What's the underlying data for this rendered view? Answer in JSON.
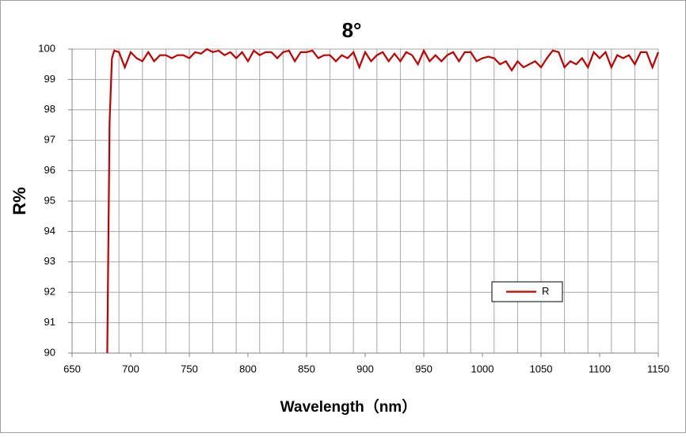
{
  "chart_data": {
    "type": "line",
    "title": "8°",
    "x_label": "Wavelength（nm）",
    "y_label": "R%",
    "xlim": [
      650,
      1150
    ],
    "ylim": [
      90,
      100
    ],
    "xticks": [
      650,
      700,
      750,
      800,
      850,
      900,
      950,
      1000,
      1050,
      1100,
      1150
    ],
    "yticks": [
      90,
      91,
      92,
      93,
      94,
      95,
      96,
      97,
      98,
      99,
      100
    ],
    "xgrid": [
      650,
      670,
      690,
      710,
      730,
      750,
      770,
      790,
      810,
      830,
      850,
      870,
      890,
      910,
      930,
      950,
      970,
      990,
      1010,
      1030,
      1050,
      1070,
      1090,
      1110,
      1130,
      1150
    ],
    "grid": true,
    "legend": "lower right",
    "x": [
      680,
      682,
      684,
      686,
      690,
      695,
      700,
      705,
      710,
      715,
      720,
      725,
      730,
      735,
      740,
      745,
      750,
      755,
      760,
      765,
      770,
      775,
      780,
      785,
      790,
      795,
      800,
      805,
      810,
      815,
      820,
      825,
      830,
      835,
      840,
      845,
      850,
      855,
      860,
      865,
      870,
      875,
      880,
      885,
      890,
      895,
      900,
      905,
      910,
      915,
      920,
      925,
      930,
      935,
      940,
      945,
      950,
      955,
      960,
      965,
      970,
      975,
      980,
      985,
      990,
      995,
      1000,
      1005,
      1010,
      1015,
      1020,
      1025,
      1030,
      1035,
      1040,
      1045,
      1050,
      1055,
      1060,
      1065,
      1070,
      1075,
      1080,
      1085,
      1090,
      1095,
      1100,
      1105,
      1110,
      1115,
      1120,
      1125,
      1130,
      1135,
      1140,
      1145,
      1150
    ],
    "series": [
      {
        "name": "R",
        "color": "#c00000",
        "values": [
          90,
          97.6,
          99.7,
          99.95,
          99.9,
          99.4,
          99.9,
          99.7,
          99.6,
          99.9,
          99.6,
          99.8,
          99.8,
          99.7,
          99.8,
          99.8,
          99.7,
          99.9,
          99.85,
          100,
          99.9,
          99.95,
          99.8,
          99.9,
          99.7,
          99.9,
          99.6,
          99.95,
          99.8,
          99.9,
          99.9,
          99.7,
          99.9,
          99.95,
          99.6,
          99.9,
          99.9,
          99.95,
          99.7,
          99.8,
          99.8,
          99.6,
          99.8,
          99.7,
          99.9,
          99.4,
          99.9,
          99.6,
          99.8,
          99.9,
          99.6,
          99.85,
          99.6,
          99.9,
          99.8,
          99.5,
          99.95,
          99.6,
          99.8,
          99.6,
          99.8,
          99.9,
          99.6,
          99.9,
          99.9,
          99.6,
          99.7,
          99.75,
          99.7,
          99.5,
          99.6,
          99.3,
          99.6,
          99.4,
          99.5,
          99.6,
          99.4,
          99.7,
          99.95,
          99.9,
          99.4,
          99.6,
          99.5,
          99.7,
          99.4,
          99.9,
          99.7,
          99.9,
          99.4,
          99.8,
          99.7,
          99.8,
          99.5,
          99.9,
          99.9,
          99.4,
          99.9
        ]
      }
    ]
  }
}
